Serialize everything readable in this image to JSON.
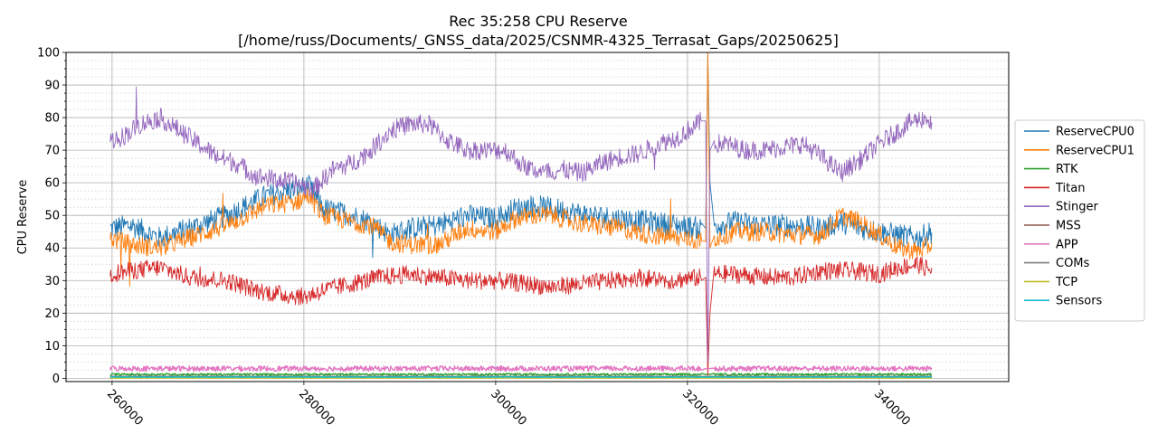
{
  "chart_data": {
    "type": "line",
    "title": "Rec 35:258 CPU Reserve",
    "subtitle": "[/home/russ/Documents/_GNSS_data/2025/CSNMR-4325_Terrasat_Gaps/20250625]",
    "xlabel": "",
    "ylabel": "CPU Reserve",
    "xlim": [
      255200,
      353500
    ],
    "ylim": [
      -1,
      100
    ],
    "x_ticks": [
      260000,
      280000,
      300000,
      320000,
      340000
    ],
    "x_tick_labels": [
      "260000",
      "280000",
      "300000",
      "320000",
      "340000"
    ],
    "y_ticks": [
      0,
      10,
      20,
      30,
      40,
      50,
      60,
      70,
      80,
      90,
      100
    ],
    "y_tick_labels": [
      "0",
      "10",
      "20",
      "30",
      "40",
      "50",
      "60",
      "70",
      "80",
      "90",
      "100"
    ],
    "grid": true,
    "legend_position": "right-outside",
    "event_x": 322000,
    "series": [
      {
        "name": "ReserveCPU0",
        "color": "#1f77b4",
        "noise": 3.5,
        "x": [
          259800,
          262000,
          265000,
          268000,
          272000,
          276000,
          279000,
          280500,
          282000,
          285000,
          287000,
          289000,
          291000,
          294000,
          297000,
          300000,
          302000,
          304000,
          306000,
          308000,
          310000,
          313000,
          316000,
          319000,
          321500
        ],
        "values": [
          46,
          47,
          43,
          46,
          50,
          56,
          58,
          59,
          52,
          50,
          48,
          44,
          46,
          47,
          50,
          49,
          52,
          53,
          52,
          51,
          50,
          49,
          48,
          47,
          46
        ]
      },
      {
        "name": "ReserveCPU1",
        "color": "#ff7f0e",
        "noise": 3.0,
        "x": [
          259800,
          262000,
          265000,
          268000,
          272000,
          276000,
          279000,
          280500,
          282000,
          285000,
          287000,
          289000,
          291000,
          294000,
          297000,
          300000,
          302000,
          304000,
          306000,
          308000,
          310000,
          313000,
          316000,
          319000,
          321500
        ],
        "values": [
          43,
          41,
          40,
          43,
          47,
          53,
          54,
          56,
          50,
          48,
          47,
          42,
          41,
          41,
          46,
          45,
          49,
          50,
          50,
          48,
          47,
          46,
          44,
          43,
          42
        ]
      },
      {
        "name": "RTK",
        "color": "#2ca02c",
        "noise": 0.3,
        "x": [
          259800,
          321500
        ],
        "values": [
          1.2,
          1.2
        ]
      },
      {
        "name": "Titan",
        "color": "#d62728",
        "noise": 2.8,
        "x": [
          259800,
          262000,
          265000,
          268000,
          272000,
          275000,
          277000,
          280000,
          282000,
          285000,
          288000,
          291000,
          294000,
          297000,
          300000,
          303000,
          306000,
          309000,
          312000,
          315000,
          318000,
          321500
        ],
        "values": [
          32,
          33,
          34,
          31,
          30,
          27,
          26,
          25,
          27,
          29,
          31,
          32,
          31,
          30,
          30,
          29,
          28,
          29,
          30,
          31,
          30,
          31
        ]
      },
      {
        "name": "Stinger",
        "color": "#9467bd",
        "noise": 3.0,
        "x": [
          259800,
          261000,
          263000,
          265000,
          267000,
          269000,
          271000,
          273000,
          275000,
          277000,
          279000,
          281000,
          283000,
          285000,
          287000,
          289000,
          291000,
          293000,
          295000,
          297000,
          299000,
          301000,
          303000,
          305000,
          307000,
          309000,
          311000,
          313000,
          315000,
          317000,
          319000,
          321500
        ],
        "values": [
          73,
          74,
          78,
          80,
          76,
          72,
          68,
          66,
          62,
          61,
          60,
          58,
          64,
          66,
          70,
          76,
          78,
          78,
          73,
          70,
          70,
          70,
          65,
          63,
          64,
          63,
          66,
          68,
          69,
          72,
          74,
          79
        ]
      },
      {
        "name": "MSS",
        "color": "#8c564b",
        "noise": 0.1,
        "x": [
          259800,
          321500
        ],
        "values": [
          0.3,
          0.3
        ]
      },
      {
        "name": "APP",
        "color": "#e377c2",
        "noise": 0.8,
        "x": [
          259800,
          321500
        ],
        "values": [
          3.0,
          3.0
        ]
      },
      {
        "name": "COMs",
        "color": "#7f7f7f",
        "noise": 0.1,
        "x": [
          259800,
          321500
        ],
        "values": [
          0.6,
          0.6
        ]
      },
      {
        "name": "TCP",
        "color": "#bcbd22",
        "noise": 0.1,
        "x": [
          259800,
          321500
        ],
        "values": [
          0.1,
          0.1
        ]
      },
      {
        "name": "Sensors",
        "color": "#17becf",
        "noise": 0.1,
        "x": [
          259800,
          321500
        ],
        "values": [
          0.4,
          0.4
        ]
      }
    ],
    "series_after_event": [
      {
        "x": [
          322800,
          325000,
          328000,
          331000,
          334000,
          336000,
          338000,
          340000,
          342000,
          344000,
          345500
        ],
        "values": [
          47,
          48,
          47,
          47,
          46,
          48,
          46,
          45,
          44,
          43,
          45
        ]
      },
      {
        "x": [
          322800,
          325000,
          328000,
          331000,
          334000,
          336000,
          338000,
          340000,
          342000,
          344000,
          345500
        ],
        "values": [
          43,
          45,
          45,
          44,
          44,
          50,
          48,
          44,
          40,
          39,
          41
        ]
      },
      {
        "x": [
          322800,
          345500
        ],
        "values": [
          1.2,
          1.2
        ]
      },
      {
        "x": [
          322800,
          325000,
          328000,
          331000,
          334000,
          337000,
          340000,
          342000,
          344000,
          345500
        ],
        "values": [
          32,
          32,
          31,
          31,
          33,
          33,
          32,
          34,
          35,
          33
        ]
      },
      {
        "x": [
          322800,
          324000,
          326000,
          328000,
          330000,
          332000,
          334000,
          336000,
          338000,
          340000,
          342000,
          343500,
          345000,
          345500
        ],
        "values": [
          72,
          72,
          70,
          70,
          71,
          72,
          68,
          63,
          67,
          72,
          76,
          79,
          80,
          77
        ]
      },
      {
        "x": [
          322800,
          345500
        ],
        "values": [
          0.3,
          0.3
        ]
      },
      {
        "x": [
          322800,
          345500
        ],
        "values": [
          3.0,
          3.0
        ]
      },
      {
        "x": [
          322800,
          345500
        ],
        "values": [
          0.6,
          0.6
        ]
      },
      {
        "x": [
          322800,
          345500
        ],
        "values": [
          0.1,
          0.1
        ]
      },
      {
        "x": [
          322800,
          345500
        ],
        "values": [
          0.4,
          0.4
        ]
      }
    ]
  }
}
